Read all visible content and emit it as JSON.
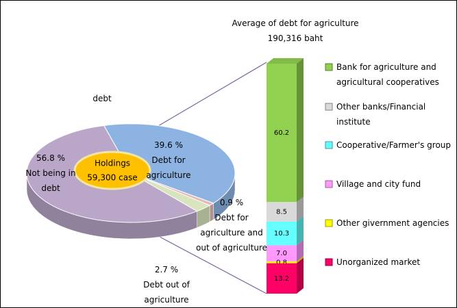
{
  "chart_data": [
    {
      "type": "pie",
      "title": "debt",
      "center_label": [
        "Holdings",
        "59,300 case"
      ],
      "categories": [
        "Debt for agriculture",
        "Debt for agriculture and out of agriculture",
        "Debt out of agriculture",
        "Not being in debt"
      ],
      "values": [
        39.6,
        0.9,
        2.7,
        56.8
      ],
      "value_labels": [
        "39.6 %",
        "0.9 %",
        "2.7 %",
        "56.8 %"
      ],
      "colors": [
        "#8db3e2",
        "#e6b9b8",
        "#d7e4bd",
        "#b9a6c9"
      ]
    },
    {
      "type": "bar",
      "title": "Average of debt for agriculture",
      "subtitle": "190,316 baht",
      "series": [
        {
          "name": "Bank for agriculture and agricultural cooperatives",
          "color": "#92d050",
          "values": [
            60.2
          ],
          "value_labels": [
            "60.2"
          ]
        },
        {
          "name": "Other banks/Financial institute",
          "color": "#d9d9d9",
          "values": [
            8.5
          ],
          "value_labels": [
            "8.5"
          ]
        },
        {
          "name": "Cooperative/Farmer's group",
          "color": "#66ffff",
          "values": [
            10.3
          ],
          "value_labels": [
            "10.3"
          ]
        },
        {
          "name": "Village and city fund",
          "color": "#ff99ff",
          "values": [
            7.0
          ],
          "value_labels": [
            "7.0"
          ]
        },
        {
          "name": "Other givernment agencies",
          "color": "#ffff00",
          "values": [
            0.8
          ],
          "value_labels": [
            "0.8"
          ]
        },
        {
          "name": "Unorganized market",
          "color": "#ff0066",
          "values": [
            13.2
          ],
          "value_labels": [
            "13.2"
          ]
        }
      ]
    }
  ]
}
